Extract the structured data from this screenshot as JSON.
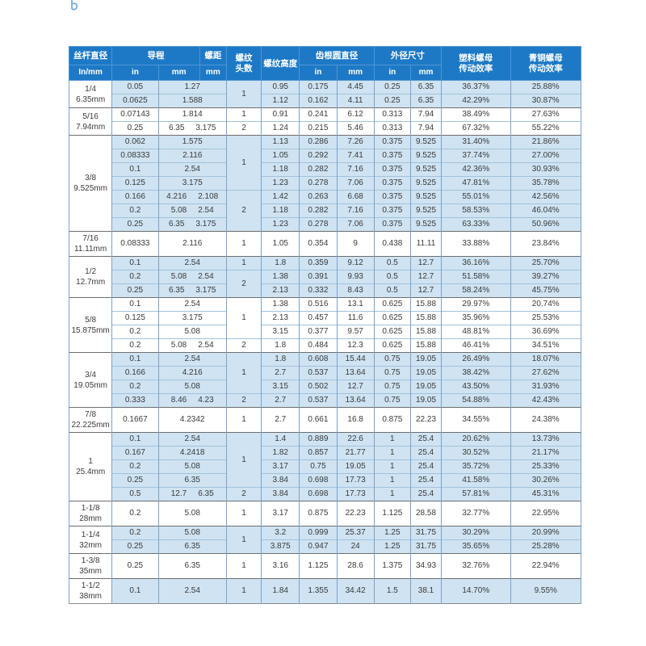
{
  "colors": {
    "header_bg": "#1d79c6",
    "header_text": "#ffffff",
    "tint_row": "#cfe3f2",
    "grid_line": "#7ba3c9",
    "row_line": "#a3c2dc",
    "group_line": "#6e6e6e",
    "text": "#3a3a3a",
    "page_bg": "#ffffff",
    "corner_mark": "#6ea9d9"
  },
  "table": {
    "header": {
      "diameter": "丝杆直径",
      "diameter_unit": "In/mm",
      "lead": "导程",
      "lead_in_unit": "in",
      "lead_mm_unit": "mm",
      "pitch": "螺距",
      "pitch_unit": "mm",
      "starts_line1": "螺纹",
      "starts_line2": "头数",
      "height": "螺纹高度",
      "root": "齿根圆直径",
      "root_in_unit": "in",
      "root_mm_unit": "mm",
      "od": "外径尺寸",
      "od_in_unit": "in",
      "od_mm_unit": "mm",
      "plastic_line1": "塑料螺母",
      "plastic_line2": "传动效率",
      "bronze_line1": "青铜螺母",
      "bronze_line2": "传动效率"
    },
    "groups": [
      {
        "size_in": "1/4",
        "size_mm": "6.35mm",
        "tint": true,
        "rows": [
          {
            "lead_in": "0.05",
            "lead_pitch_mm": [
              "1.27"
            ],
            "starts": "1",
            "starts_span": 2,
            "thread_height": "0.95",
            "root_in": "0.175",
            "root_mm": "4.45",
            "od_in": "0.25",
            "od_mm": "6.35",
            "plastic_eff": "36.37%",
            "bronze_eff": "25.88%"
          },
          {
            "lead_in": "0.0625",
            "lead_pitch_mm": [
              "1.588"
            ],
            "thread_height": "1.12",
            "root_in": "0.162",
            "root_mm": "4.11",
            "od_in": "0.25",
            "od_mm": "6.35",
            "plastic_eff": "42.29%",
            "bronze_eff": "30.87%"
          }
        ]
      },
      {
        "size_in": "5/16",
        "size_mm": "7.94mm",
        "tint": false,
        "rows": [
          {
            "lead_in": "0.07143",
            "lead_pitch_mm": [
              "1.814"
            ],
            "starts": "1",
            "thread_height": "0.91",
            "root_in": "0.241",
            "root_mm": "6.12",
            "od_in": "0.313",
            "od_mm": "7.94",
            "plastic_eff": "38.49%",
            "bronze_eff": "27.63%"
          },
          {
            "lead_in": "0.25",
            "lead_pitch_mm": [
              "6.35",
              "3.175"
            ],
            "starts": "2",
            "thread_height": "1.24",
            "root_in": "0.215",
            "root_mm": "5.46",
            "od_in": "0.313",
            "od_mm": "7.94",
            "plastic_eff": "67.32%",
            "bronze_eff": "55.22%"
          }
        ]
      },
      {
        "size_in": "3/8",
        "size_mm": "9.525mm",
        "tint": true,
        "rows": [
          {
            "lead_in": "0.062",
            "lead_pitch_mm": [
              "1.575"
            ],
            "starts": "1",
            "starts_span": 4,
            "thread_height": "1.13",
            "root_in": "0.286",
            "root_mm": "7.26",
            "od_in": "0.375",
            "od_mm": "9.525",
            "plastic_eff": "31.40%",
            "bronze_eff": "21.86%"
          },
          {
            "lead_in": "0.08333",
            "lead_pitch_mm": [
              "2.116"
            ],
            "thread_height": "1.05",
            "root_in": "0.292",
            "root_mm": "7.41",
            "od_in": "0.375",
            "od_mm": "9.525",
            "plastic_eff": "37.74%",
            "bronze_eff": "27.00%"
          },
          {
            "lead_in": "0.1",
            "lead_pitch_mm": [
              "2.54"
            ],
            "thread_height": "1.18",
            "root_in": "0.282",
            "root_mm": "7.16",
            "od_in": "0.375",
            "od_mm": "9.525",
            "plastic_eff": "42.36%",
            "bronze_eff": "30.93%"
          },
          {
            "lead_in": "0.125",
            "lead_pitch_mm": [
              "3.175"
            ],
            "thread_height": "1.23",
            "root_in": "0.278",
            "root_mm": "7.06",
            "od_in": "0.375",
            "od_mm": "9.525",
            "plastic_eff": "47.81%",
            "bronze_eff": "35.78%"
          },
          {
            "lead_in": "0.166",
            "lead_pitch_mm": [
              "4.216",
              "2.108"
            ],
            "starts": "2",
            "starts_span": 3,
            "thread_height": "1.42",
            "root_in": "0.263",
            "root_mm": "6.68",
            "od_in": "0.375",
            "od_mm": "9.525",
            "plastic_eff": "55.01%",
            "bronze_eff": "42.56%"
          },
          {
            "lead_in": "0.2",
            "lead_pitch_mm": [
              "5.08",
              "2.54"
            ],
            "thread_height": "1.18",
            "root_in": "0.282",
            "root_mm": "7.16",
            "od_in": "0.375",
            "od_mm": "9.525",
            "plastic_eff": "58.53%",
            "bronze_eff": "46.04%"
          },
          {
            "lead_in": "0.25",
            "lead_pitch_mm": [
              "6.35",
              "3.175"
            ],
            "thread_height": "1.23",
            "root_in": "0.278",
            "root_mm": "7.06",
            "od_in": "0.375",
            "od_mm": "9.525",
            "plastic_eff": "63.33%",
            "bronze_eff": "50.96%"
          }
        ]
      },
      {
        "size_in": "7/16",
        "size_mm": "11.11mm",
        "tint": false,
        "rows": [
          {
            "lead_in": "0.08333",
            "lead_pitch_mm": [
              "2.116"
            ],
            "starts": "1",
            "thread_height": "1.05",
            "root_in": "0.354",
            "root_mm": "9",
            "od_in": "0.438",
            "od_mm": "11.11",
            "plastic_eff": "33.88%",
            "bronze_eff": "23.84%"
          }
        ]
      },
      {
        "size_in": "1/2",
        "size_mm": "12.7mm",
        "tint": true,
        "rows": [
          {
            "lead_in": "0.1",
            "lead_pitch_mm": [
              "2.54"
            ],
            "starts": "1",
            "thread_height": "1.8",
            "root_in": "0.359",
            "root_mm": "9.12",
            "od_in": "0.5",
            "od_mm": "12.7",
            "plastic_eff": "36.16%",
            "bronze_eff": "25.70%"
          },
          {
            "lead_in": "0.2",
            "lead_pitch_mm": [
              "5.08",
              "2.54"
            ],
            "starts": "2",
            "starts_span": 2,
            "thread_height": "1.38",
            "root_in": "0.391",
            "root_mm": "9.93",
            "od_in": "0.5",
            "od_mm": "12.7",
            "plastic_eff": "51.58%",
            "bronze_eff": "39.27%"
          },
          {
            "lead_in": "0.25",
            "lead_pitch_mm": [
              "6.35",
              "3.175"
            ],
            "thread_height": "2.13",
            "root_in": "0.332",
            "root_mm": "8.43",
            "od_in": "0.5",
            "od_mm": "12.7",
            "plastic_eff": "58.24%",
            "bronze_eff": "45.75%"
          }
        ]
      },
      {
        "size_in": "5/8",
        "size_mm": "15.875mm",
        "tint": false,
        "rows": [
          {
            "lead_in": "0.1",
            "lead_pitch_mm": [
              "2.54"
            ],
            "starts": "1",
            "starts_span": 3,
            "thread_height": "1.38",
            "root_in": "0.516",
            "root_mm": "13.1",
            "od_in": "0.625",
            "od_mm": "15.88",
            "plastic_eff": "29.97%",
            "bronze_eff": "20.74%"
          },
          {
            "lead_in": "0.125",
            "lead_pitch_mm": [
              "3.175"
            ],
            "thread_height": "2.13",
            "root_in": "0.457",
            "root_mm": "11.6",
            "od_in": "0.625",
            "od_mm": "15.88",
            "plastic_eff": "35.96%",
            "bronze_eff": "25.53%"
          },
          {
            "lead_in": "0.2",
            "lead_pitch_mm": [
              "5.08"
            ],
            "thread_height": "3.15",
            "root_in": "0.377",
            "root_mm": "9.57",
            "od_in": "0.625",
            "od_mm": "15.88",
            "plastic_eff": "48.81%",
            "bronze_eff": "36.69%"
          },
          {
            "lead_in": "0.2",
            "lead_pitch_mm": [
              "5.08",
              "2.54"
            ],
            "starts": "2",
            "thread_height": "1.8",
            "root_in": "0.484",
            "root_mm": "12.3",
            "od_in": "0.625",
            "od_mm": "15.88",
            "plastic_eff": "46.41%",
            "bronze_eff": "34.51%"
          }
        ]
      },
      {
        "size_in": "3/4",
        "size_mm": "19.05mm",
        "tint": true,
        "rows": [
          {
            "lead_in": "0.1",
            "lead_pitch_mm": [
              "2.54"
            ],
            "starts": "1",
            "starts_span": 3,
            "thread_height": "1.8",
            "root_in": "0.608",
            "root_mm": "15.44",
            "od_in": "0.75",
            "od_mm": "19.05",
            "plastic_eff": "26.49%",
            "bronze_eff": "18.07%"
          },
          {
            "lead_in": "0.166",
            "lead_pitch_mm": [
              "4.216"
            ],
            "thread_height": "2.7",
            "root_in": "0.537",
            "root_mm": "13.64",
            "od_in": "0.75",
            "od_mm": "19.05",
            "plastic_eff": "38.42%",
            "bronze_eff": "27.62%"
          },
          {
            "lead_in": "0.2",
            "lead_pitch_mm": [
              "5.08"
            ],
            "thread_height": "3.15",
            "root_in": "0.502",
            "root_mm": "12.7",
            "od_in": "0.75",
            "od_mm": "19.05",
            "plastic_eff": "43.50%",
            "bronze_eff": "31.93%"
          },
          {
            "lead_in": "0.333",
            "lead_pitch_mm": [
              "8.46",
              "4.23"
            ],
            "starts": "2",
            "thread_height": "2.7",
            "root_in": "0.537",
            "root_mm": "13.64",
            "od_in": "0.75",
            "od_mm": "19.05",
            "plastic_eff": "54.88%",
            "bronze_eff": "42.43%"
          }
        ]
      },
      {
        "size_in": "7/8",
        "size_mm": "22.225mm",
        "tint": false,
        "rows": [
          {
            "lead_in": "0.1667",
            "lead_pitch_mm": [
              "4.2342"
            ],
            "starts": "1",
            "thread_height": "2.7",
            "root_in": "0.661",
            "root_mm": "16.8",
            "od_in": "0.875",
            "od_mm": "22.23",
            "plastic_eff": "34.55%",
            "bronze_eff": "24.38%"
          }
        ]
      },
      {
        "size_in": "1",
        "size_mm": "25.4mm",
        "tint": true,
        "rows": [
          {
            "lead_in": "0.1",
            "lead_pitch_mm": [
              "2.54"
            ],
            "starts": "1",
            "starts_span": 4,
            "thread_height": "1.4",
            "root_in": "0.889",
            "root_mm": "22.6",
            "od_in": "1",
            "od_mm": "25.4",
            "plastic_eff": "20.62%",
            "bronze_eff": "13.73%"
          },
          {
            "lead_in": "0.167",
            "lead_pitch_mm": [
              "4.2418"
            ],
            "thread_height": "1.82",
            "root_in": "0.857",
            "root_mm": "21.77",
            "od_in": "1",
            "od_mm": "25.4",
            "plastic_eff": "30.52%",
            "bronze_eff": "21.17%"
          },
          {
            "lead_in": "0.2",
            "lead_pitch_mm": [
              "5.08"
            ],
            "thread_height": "3.17",
            "root_in": "0.75",
            "root_mm": "19.05",
            "od_in": "1",
            "od_mm": "25.4",
            "plastic_eff": "35.72%",
            "bronze_eff": "25.33%"
          },
          {
            "lead_in": "0.25",
            "lead_pitch_mm": [
              "6.35"
            ],
            "thread_height": "3.84",
            "root_in": "0.698",
            "root_mm": "17.73",
            "od_in": "1",
            "od_mm": "25.4",
            "plastic_eff": "41.58%",
            "bronze_eff": "30.26%"
          },
          {
            "lead_in": "0.5",
            "lead_pitch_mm": [
              "12.7",
              "6.35"
            ],
            "starts": "2",
            "thread_height": "3.84",
            "root_in": "0.698",
            "root_mm": "17.73",
            "od_in": "1",
            "od_mm": "25.4",
            "plastic_eff": "57.81%",
            "bronze_eff": "45.31%"
          }
        ]
      },
      {
        "size_in": "1-1/8",
        "size_mm": "28mm",
        "tint": false,
        "rows": [
          {
            "lead_in": "0.2",
            "lead_pitch_mm": [
              "5.08"
            ],
            "starts": "1",
            "thread_height": "3.17",
            "root_in": "0.875",
            "root_mm": "22.23",
            "od_in": "1.125",
            "od_mm": "28.58",
            "plastic_eff": "32.77%",
            "bronze_eff": "22.95%"
          }
        ]
      },
      {
        "size_in": "1-1/4",
        "size_mm": "32mm",
        "tint": true,
        "rows": [
          {
            "lead_in": "0.2",
            "lead_pitch_mm": [
              "5.08"
            ],
            "starts": "1",
            "starts_span": 2,
            "thread_height": "3.2",
            "root_in": "0.999",
            "root_mm": "25.37",
            "od_in": "1.25",
            "od_mm": "31.75",
            "plastic_eff": "30.29%",
            "bronze_eff": "20.99%"
          },
          {
            "lead_in": "0.25",
            "lead_pitch_mm": [
              "6.35"
            ],
            "thread_height": "3.875",
            "root_in": "0.947",
            "root_mm": "24",
            "od_in": "1.25",
            "od_mm": "31.75",
            "plastic_eff": "35.65%",
            "bronze_eff": "25.28%"
          }
        ]
      },
      {
        "size_in": "1-3/8",
        "size_mm": "35mm",
        "tint": false,
        "rows": [
          {
            "lead_in": "0.25",
            "lead_pitch_mm": [
              "6.35"
            ],
            "starts": "1",
            "thread_height": "3.16",
            "root_in": "1.125",
            "root_mm": "28.6",
            "od_in": "1.375",
            "od_mm": "34.93",
            "plastic_eff": "32.76%",
            "bronze_eff": "22.94%"
          }
        ]
      },
      {
        "size_in": "1-1/2",
        "size_mm": "38mm",
        "tint": true,
        "rows": [
          {
            "lead_in": "0.1",
            "lead_pitch_mm": [
              "2.54"
            ],
            "starts": "1",
            "thread_height": "1.84",
            "root_in": "1.355",
            "root_mm": "34.42",
            "od_in": "1.5",
            "od_mm": "38.1",
            "plastic_eff": "14.70%",
            "bronze_eff": "9.55%"
          }
        ]
      }
    ]
  }
}
